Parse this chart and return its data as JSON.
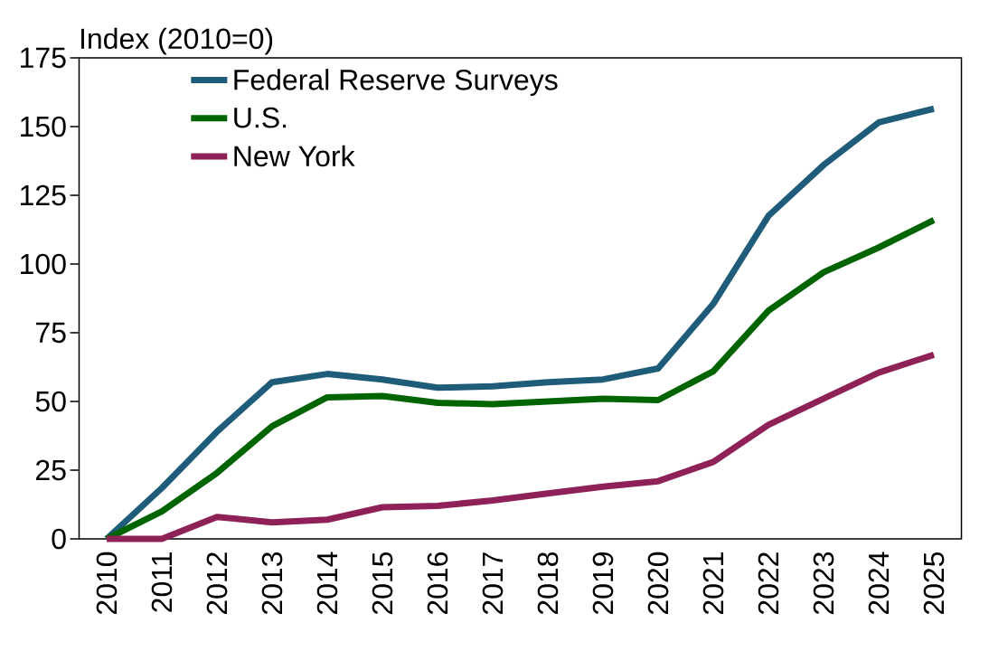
{
  "chart_data": {
    "type": "line",
    "ylabel": "Index (2010=0)",
    "categories": [
      "2010",
      "2011",
      "2012",
      "2013",
      "2014",
      "2015",
      "2016",
      "2017",
      "2018",
      "2019",
      "2020",
      "2021",
      "2022",
      "2023",
      "2024",
      "2025"
    ],
    "series": [
      {
        "name": "Federal Reserve Surveys",
        "color": "#1f5c7a",
        "values": [
          0,
          18.5,
          39,
          57,
          60,
          58,
          55,
          55.5,
          57,
          58,
          62,
          85.5,
          117.5,
          136,
          151.5,
          156.5
        ]
      },
      {
        "name": "U.S.",
        "color": "#006400",
        "values": [
          0,
          10,
          24,
          41,
          51.5,
          52,
          49.5,
          49,
          50,
          51,
          50.5,
          61,
          83,
          97,
          106,
          116
        ]
      },
      {
        "name": "New York",
        "color": "#8e2157",
        "values": [
          0,
          0,
          8,
          6,
          7,
          11.5,
          12,
          14,
          16.5,
          19,
          21,
          28,
          41.5,
          51,
          60.5,
          67
        ]
      }
    ],
    "ylim": [
      0,
      175
    ],
    "yticks": [
      0,
      25,
      50,
      75,
      100,
      125,
      150,
      175
    ],
    "grid": false,
    "legend": "top left",
    "line_style": "solid",
    "marker": "none"
  }
}
